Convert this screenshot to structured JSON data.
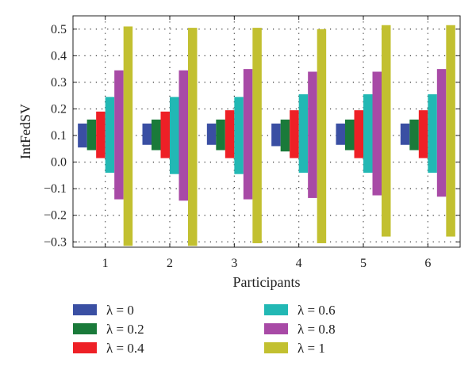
{
  "chart_data": {
    "type": "bar",
    "subtype": "floating-range",
    "title": "",
    "xlabel": "Participants",
    "ylabel": "IntFedSV",
    "categories": [
      "1",
      "2",
      "3",
      "4",
      "5",
      "6"
    ],
    "ylim": [
      -0.32,
      0.55
    ],
    "yticks": [
      -0.3,
      -0.2,
      -0.1,
      0.0,
      0.1,
      0.2,
      0.3,
      0.4,
      0.5
    ],
    "ytick_labels": [
      "−0.3",
      "−0.2",
      "−0.1",
      "0.0",
      "0.1",
      "0.2",
      "0.3",
      "0.4",
      "0.5"
    ],
    "grid": "dotted",
    "legend_position": "bottom",
    "series": [
      {
        "name": "λ = 0",
        "color": "#3a4fa3",
        "low": [
          0.055,
          0.065,
          0.065,
          0.06,
          0.065,
          0.065
        ],
        "high": [
          0.145,
          0.145,
          0.145,
          0.145,
          0.145,
          0.145
        ]
      },
      {
        "name": "λ = 0.2",
        "color": "#1a7a3a",
        "low": [
          0.045,
          0.045,
          0.045,
          0.04,
          0.045,
          0.045
        ],
        "high": [
          0.16,
          0.16,
          0.16,
          0.16,
          0.16,
          0.16
        ]
      },
      {
        "name": "λ = 0.4",
        "color": "#ee2026",
        "low": [
          0.015,
          0.015,
          0.015,
          0.015,
          0.015,
          0.015
        ],
        "high": [
          0.19,
          0.19,
          0.195,
          0.195,
          0.195,
          0.195
        ]
      },
      {
        "name": "λ = 0.6",
        "color": "#22b8b4",
        "low": [
          -0.04,
          -0.045,
          -0.045,
          -0.04,
          -0.04,
          -0.04
        ],
        "high": [
          0.245,
          0.245,
          0.245,
          0.255,
          0.255,
          0.255
        ]
      },
      {
        "name": "λ = 0.8",
        "color": "#a84aa6",
        "low": [
          -0.14,
          -0.145,
          -0.14,
          -0.135,
          -0.125,
          -0.13
        ],
        "high": [
          0.345,
          0.345,
          0.35,
          0.34,
          0.34,
          0.35
        ]
      },
      {
        "name": "λ = 1",
        "color": "#c2c030",
        "low": [
          -0.315,
          -0.315,
          -0.305,
          -0.305,
          -0.28,
          -0.28
        ],
        "high": [
          0.51,
          0.505,
          0.505,
          0.5,
          0.515,
          0.515
        ]
      }
    ]
  }
}
